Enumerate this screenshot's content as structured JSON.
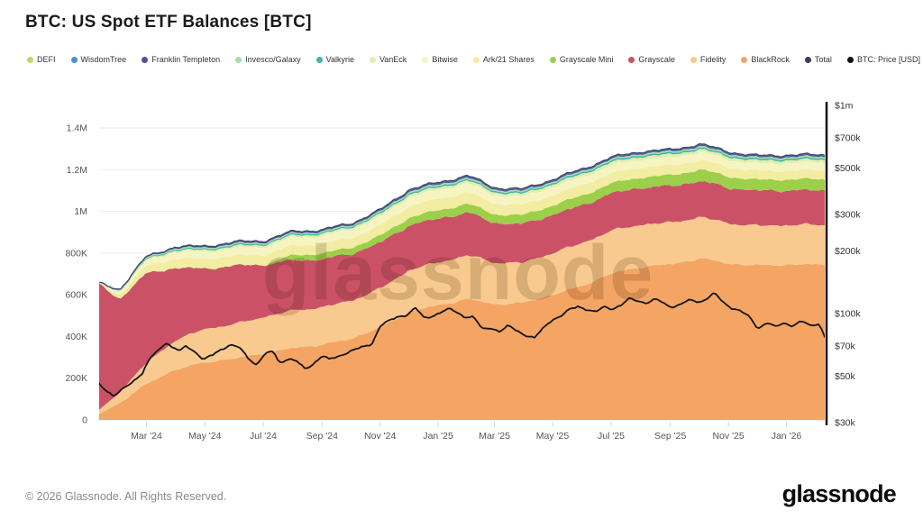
{
  "title": "BTC: US Spot ETF Balances [BTC]",
  "watermark": "glassnode",
  "footer": {
    "copyright": "© 2026 Glassnode. All Rights Reserved.",
    "logo": "glassnode"
  },
  "legend": [
    {
      "label": "DEFI",
      "color": "#bcdb6b"
    },
    {
      "label": "WisdomTree",
      "color": "#4e8fca"
    },
    {
      "label": "Franklin Templeton",
      "color": "#52519b"
    },
    {
      "label": "Invesco/Galaxy",
      "color": "#a9dcab"
    },
    {
      "label": "Valkyrie",
      "color": "#3eb6a6"
    },
    {
      "label": "VanEck",
      "color": "#e0efae"
    },
    {
      "label": "Bitwise",
      "color": "#f7f4c4"
    },
    {
      "label": "Ark/21 Shares",
      "color": "#f2eda2"
    },
    {
      "label": "Grayscale Mini",
      "color": "#9ccf4a"
    },
    {
      "label": "Grayscale",
      "color": "#cb5266"
    },
    {
      "label": "Fidelity",
      "color": "#f8ca8f"
    },
    {
      "label": "BlackRock",
      "color": "#f4a563"
    },
    {
      "label": "Total",
      "color": "#39404f"
    },
    {
      "label": "BTC: Price [USD]",
      "color": "#111111"
    }
  ],
  "chart_data": {
    "type": "area",
    "stacked": true,
    "title": "BTC: US Spot ETF Balances [BTC]",
    "x_unit": "months since 2024-01-11 (chart spans Jan '24 to Feb '26)",
    "y_unit_left": "BTC held (thousands)",
    "y_unit_right": "BTC price, USD (thousands, log scale)",
    "x": [
      0,
      0.7,
      1.6,
      2.6,
      3.6,
      4.7,
      5.7,
      6.7,
      7.7,
      8.7,
      9.7,
      10.7,
      11.7,
      12.7,
      13.6,
      14.6,
      15.6,
      16.6,
      17.6,
      18.7,
      19.7,
      20.7,
      21.7,
      22.7,
      23.7,
      25.0
    ],
    "series": [
      {
        "name": "BlackRock",
        "color": "#f4a563",
        "values": [
          28,
          80,
          170,
          240,
          275,
          295,
          320,
          345,
          360,
          390,
          445,
          520,
          550,
          580,
          555,
          560,
          600,
          640,
          700,
          735,
          745,
          775,
          750,
          740,
          745,
          745
        ]
      },
      {
        "name": "Fidelity",
        "color": "#f8ca8f",
        "values": [
          20,
          50,
          100,
          140,
          160,
          165,
          175,
          180,
          180,
          182,
          185,
          200,
          205,
          210,
          200,
          193,
          200,
          205,
          205,
          203,
          200,
          198,
          193,
          190,
          190,
          190
        ]
      },
      {
        "name": "Grayscale",
        "color": "#cb5266",
        "values": [
          600,
          450,
          430,
          350,
          290,
          280,
          250,
          240,
          230,
          225,
          220,
          215,
          210,
          205,
          190,
          185,
          183,
          181,
          179,
          177,
          175,
          173,
          170,
          168,
          166,
          165
        ]
      },
      {
        "name": "Grayscale Mini",
        "color": "#9ccf4a",
        "values": [
          0,
          0,
          0,
          0,
          0,
          0,
          0,
          25,
          28,
          30,
          33,
          37,
          40,
          42,
          42,
          43,
          45,
          47,
          48,
          50,
          52,
          55,
          54,
          52,
          53,
          54
        ]
      },
      {
        "name": "Ark/21 Shares",
        "color": "#f2eda2",
        "values": [
          2,
          20,
          35,
          44,
          46,
          47,
          48,
          47,
          46,
          47,
          50,
          55,
          55,
          56,
          52,
          50,
          50,
          50,
          49,
          48,
          47,
          46,
          44,
          42,
          43,
          43
        ]
      },
      {
        "name": "Bitwise",
        "color": "#f7f4c4",
        "values": [
          2,
          15,
          25,
          32,
          34,
          36,
          38,
          38,
          38,
          39,
          41,
          43,
          42,
          42,
          40,
          39,
          39,
          39,
          38,
          38,
          38,
          38,
          37,
          36,
          36,
          36
        ]
      },
      {
        "name": "VanEck",
        "color": "#e0efae",
        "values": [
          0.5,
          3,
          6,
          8,
          9,
          10,
          10,
          10,
          10,
          11,
          12,
          13,
          13,
          13,
          13,
          13,
          13,
          14,
          14,
          14,
          14,
          14,
          14,
          14,
          14,
          14
        ]
      },
      {
        "name": "Valkyrie",
        "color": "#3eb6a6",
        "values": [
          0.3,
          2,
          4,
          5,
          5.5,
          6,
          6,
          6,
          6,
          6,
          6.5,
          7,
          7,
          7,
          7,
          7,
          7,
          7.5,
          7.5,
          7.5,
          7.5,
          7.5,
          7.5,
          7.5,
          7.5,
          7.5
        ]
      },
      {
        "name": "Invesco/Galaxy",
        "color": "#a9dcab",
        "values": [
          0.5,
          3,
          5,
          6,
          6,
          6,
          5.5,
          5.5,
          5.5,
          5.5,
          6,
          7,
          7,
          7,
          6.5,
          6.5,
          6.5,
          7,
          7,
          7,
          7,
          7,
          7,
          7,
          7,
          7
        ]
      },
      {
        "name": "Franklin Templeton",
        "color": "#52519b",
        "values": [
          0.2,
          1.5,
          3,
          4,
          4.5,
          5,
          5,
          5,
          5,
          5,
          5.5,
          6,
          6,
          6,
          5.5,
          5.5,
          5.5,
          5.5,
          5.5,
          5.5,
          5.5,
          5.5,
          5.5,
          5.5,
          5.5,
          5.5
        ]
      },
      {
        "name": "WisdomTree",
        "color": "#4e8fca",
        "values": [
          0.1,
          0.5,
          1,
          1.5,
          2,
          2.5,
          2.5,
          2.5,
          2.5,
          2.5,
          3,
          3.5,
          3.5,
          3.5,
          3.5,
          3.5,
          3.5,
          3.5,
          3.5,
          3.5,
          3.5,
          3.5,
          3.5,
          3.5,
          3.5,
          3.5
        ]
      },
      {
        "name": "DEFI",
        "color": "#bcdb6b",
        "values": [
          0.1,
          0.1,
          0.1,
          0.1,
          0.1,
          0.1,
          0.1,
          0.1,
          0.1,
          0.1,
          0.1,
          0.1,
          0.1,
          0.1,
          0.1,
          0.1,
          0.1,
          0.1,
          0.1,
          0.1,
          0.1,
          0.1,
          0.1,
          0.1,
          0.1,
          0.1
        ]
      }
    ],
    "total": {
      "name": "Total",
      "color": "#3d4a6b",
      "values": [
        653.7,
        625.1,
        779.1,
        830.6,
        832.1,
        852.6,
        860.1,
        904.1,
        911.1,
        943.1,
        1007.1,
        1106.6,
        1138.6,
        1171.6,
        1114.6,
        1105.6,
        1152.6,
        1199.6,
        1256.6,
        1288.6,
        1294.6,
        1322.6,
        1285.6,
        1265.6,
        1270.6,
        1270.6
      ]
    },
    "price": {
      "name": "BTC: Price [USD]",
      "color": "#141414",
      "axis": "right",
      "x": [
        0,
        0.3,
        0.5,
        0.8,
        1.2,
        1.5,
        1.8,
        2.1,
        2.3,
        2.5,
        2.8,
        3.0,
        3.3,
        3.6,
        3.9,
        4.2,
        4.5,
        4.8,
        5.1,
        5.4,
        5.7,
        6.0,
        6.2,
        6.5,
        6.8,
        7.1,
        7.4,
        7.7,
        7.9,
        8.2,
        8.5,
        8.8,
        9.1,
        9.4,
        9.7,
        10.0,
        10.3,
        10.6,
        10.9,
        11.2,
        11.5,
        11.8,
        12.1,
        12.3,
        12.6,
        12.9,
        13.2,
        13.5,
        13.8,
        14.1,
        14.4,
        14.7,
        15.0,
        15.3,
        15.6,
        15.9,
        16.2,
        16.5,
        16.8,
        17.1,
        17.4,
        17.7,
        18.0,
        18.3,
        18.6,
        18.9,
        19.2,
        19.5,
        19.8,
        20.1,
        20.4,
        20.7,
        21.0,
        21.2,
        21.5,
        21.8,
        22.1,
        22.4,
        22.7,
        23.0,
        23.3,
        23.6,
        23.9,
        24.2,
        24.5,
        24.8,
        25.0
      ],
      "values": [
        46,
        42.5,
        40,
        43,
        48,
        52,
        62,
        68,
        73.5,
        69,
        66,
        70,
        66,
        60,
        63,
        67.5,
        71,
        69,
        62,
        57,
        63.5,
        66,
        58,
        61,
        59,
        54,
        58,
        63,
        60,
        62,
        65,
        67,
        69,
        72,
        88,
        92,
        97,
        99,
        106,
        95,
        98,
        102,
        105,
        102,
        97,
        96,
        84,
        86,
        82,
        87,
        83,
        79,
        76,
        85,
        94,
        97,
        104,
        109,
        105,
        101,
        108,
        106,
        110,
        118,
        115,
        113,
        117,
        111,
        108,
        112,
        116,
        114,
        120,
        125,
        113,
        107,
        103,
        96,
        85,
        91,
        86,
        90,
        88,
        92,
        87,
        90,
        78
      ]
    },
    "axes": {
      "left": {
        "labels": [
          "0",
          "200K",
          "400K",
          "600K",
          "800K",
          "1M",
          "1.2M",
          "1.4M"
        ],
        "values": [
          0,
          200,
          400,
          600,
          800,
          1000,
          1200,
          1400
        ]
      },
      "right": {
        "labels": [
          "$30k",
          "$50k",
          "$70k",
          "$100k",
          "$200k",
          "$300k",
          "$500k",
          "$700k",
          "$1m"
        ],
        "values": [
          30,
          50,
          70,
          100,
          200,
          300,
          500,
          700,
          1000
        ],
        "scale": "log"
      },
      "x": {
        "labels": [
          "Mar '24",
          "May '24",
          "Jul '24",
          "Sep '24",
          "Nov '24",
          "Jan '25",
          "Mar '25",
          "May '25",
          "Jul '25",
          "Sep '25",
          "Nov '25",
          "Jan '26"
        ],
        "months": [
          1.63,
          3.64,
          5.65,
          7.68,
          9.68,
          11.68,
          13.62,
          15.62,
          17.64,
          19.68,
          21.68,
          23.68
        ]
      },
      "grid": true,
      "legend_position": "top"
    }
  }
}
